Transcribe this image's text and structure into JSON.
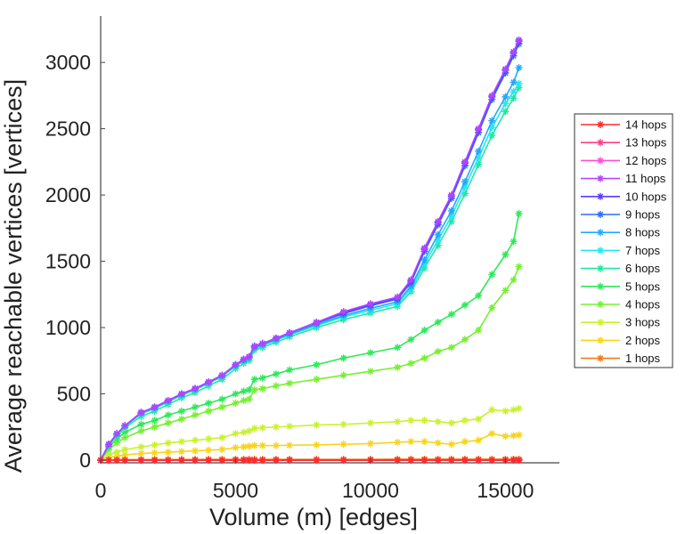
{
  "chart_data": {
    "type": "line",
    "title": "",
    "xlabel": "Volume (m) [edges]",
    "ylabel": "Average reachable vertices [vertices]",
    "xlim": [
      0,
      17000
    ],
    "ylim": [
      -20,
      3350
    ],
    "xticks": [
      0,
      5000,
      10000,
      15000
    ],
    "xtick_labels": [
      "0",
      "5000",
      "10000",
      "15000"
    ],
    "yticks": [
      0,
      500,
      1000,
      1500,
      2000,
      2500,
      3000
    ],
    "ytick_labels": [
      "0",
      "500",
      "1000",
      "1500",
      "2000",
      "2500",
      "3000"
    ],
    "grid": false,
    "legend": "right",
    "marker": "asterisk",
    "x": [
      0,
      300,
      600,
      900,
      1500,
      2000,
      2500,
      3000,
      3500,
      4000,
      4500,
      5000,
      5300,
      5500,
      5700,
      6000,
      6500,
      7000,
      8000,
      9000,
      10000,
      11000,
      11500,
      12000,
      12500,
      13000,
      13500,
      14000,
      14500,
      15000,
      15300,
      15500
    ],
    "series": [
      {
        "name": "14 hops",
        "color": "#ff2b2b",
        "values": [
          0,
          0,
          0,
          0,
          0,
          0,
          0,
          0,
          0,
          0,
          0,
          0,
          0,
          0,
          0,
          0,
          0,
          0,
          0,
          0,
          0,
          0,
          0,
          0,
          0,
          0,
          0,
          0,
          0,
          0,
          0,
          0
        ]
      },
      {
        "name": "13 hops",
        "color": "#ff3f8a",
        "values": [
          0,
          0,
          0,
          0,
          0,
          0,
          0,
          0,
          0,
          0,
          0,
          0,
          0,
          0,
          0,
          0,
          0,
          0,
          0,
          0,
          0,
          0,
          0,
          0,
          0,
          0,
          0,
          0,
          0,
          0,
          0,
          0
        ]
      },
      {
        "name": "12 hops",
        "color": "#ff4dd8",
        "values": [
          0,
          0,
          0,
          0,
          0,
          0,
          0,
          0,
          0,
          0,
          0,
          0,
          0,
          0,
          0,
          0,
          0,
          0,
          0,
          0,
          0,
          0,
          0,
          0,
          0,
          0,
          0,
          0,
          0,
          0,
          0,
          0
        ]
      },
      {
        "name": "11 hops",
        "color": "#b444ff",
        "values": [
          0,
          120,
          200,
          260,
          360,
          400,
          450,
          500,
          540,
          590,
          640,
          720,
          760,
          780,
          860,
          880,
          920,
          960,
          1040,
          1120,
          1180,
          1230,
          1360,
          1600,
          1800,
          2000,
          2250,
          2500,
          2750,
          2950,
          3080,
          3170
        ]
      },
      {
        "name": "10 hops",
        "color": "#5a3cff",
        "values": [
          0,
          120,
          200,
          260,
          360,
          400,
          450,
          500,
          540,
          590,
          640,
          720,
          760,
          780,
          860,
          880,
          920,
          960,
          1040,
          1110,
          1170,
          1220,
          1350,
          1590,
          1790,
          1990,
          2240,
          2490,
          2740,
          2940,
          3070,
          3160
        ]
      },
      {
        "name": "9 hops",
        "color": "#2f6bff",
        "values": [
          0,
          120,
          200,
          260,
          360,
          400,
          450,
          500,
          540,
          590,
          640,
          720,
          760,
          780,
          860,
          880,
          920,
          960,
          1035,
          1105,
          1165,
          1215,
          1340,
          1575,
          1775,
          1975,
          2220,
          2470,
          2720,
          2920,
          3050,
          3140
        ]
      },
      {
        "name": "8 hops",
        "color": "#22a8ff",
        "values": [
          0,
          118,
          198,
          258,
          355,
          395,
          445,
          495,
          535,
          585,
          635,
          715,
          755,
          775,
          850,
          870,
          910,
          950,
          1025,
          1090,
          1145,
          1195,
          1310,
          1510,
          1700,
          1880,
          2100,
          2330,
          2560,
          2740,
          2850,
          2960
        ]
      },
      {
        "name": "7 hops",
        "color": "#22e8f0",
        "values": [
          0,
          115,
          195,
          255,
          350,
          390,
          440,
          490,
          530,
          580,
          630,
          710,
          750,
          770,
          845,
          865,
          905,
          945,
          1015,
          1080,
          1130,
          1180,
          1290,
          1480,
          1660,
          1840,
          2060,
          2280,
          2510,
          2690,
          2780,
          2840
        ]
      },
      {
        "name": "6 hops",
        "color": "#20e8a0",
        "values": [
          0,
          110,
          185,
          245,
          330,
          370,
          420,
          470,
          510,
          560,
          610,
          690,
          730,
          750,
          830,
          850,
          890,
          930,
          1000,
          1060,
          1110,
          1160,
          1270,
          1450,
          1620,
          1800,
          2010,
          2230,
          2450,
          2630,
          2730,
          2810
        ]
      },
      {
        "name": "5 hops",
        "color": "#2ee85a",
        "values": [
          0,
          100,
          160,
          210,
          270,
          300,
          340,
          370,
          400,
          430,
          460,
          500,
          520,
          530,
          610,
          620,
          650,
          680,
          720,
          770,
          810,
          850,
          910,
          980,
          1040,
          1100,
          1170,
          1240,
          1400,
          1550,
          1650,
          1860
        ]
      },
      {
        "name": "4 hops",
        "color": "#76f030",
        "values": [
          0,
          80,
          130,
          170,
          220,
          250,
          280,
          310,
          340,
          370,
          400,
          430,
          450,
          460,
          530,
          540,
          560,
          580,
          610,
          640,
          670,
          700,
          730,
          770,
          820,
          850,
          910,
          980,
          1150,
          1280,
          1360,
          1460
        ]
      },
      {
        "name": "3 hops",
        "color": "#c8f22e",
        "values": [
          0,
          40,
          60,
          80,
          100,
          115,
          130,
          140,
          150,
          160,
          170,
          200,
          210,
          220,
          240,
          245,
          250,
          255,
          265,
          270,
          280,
          290,
          300,
          300,
          290,
          280,
          300,
          310,
          380,
          370,
          380,
          390
        ]
      },
      {
        "name": "2 hops",
        "color": "#f8d41a",
        "values": [
          0,
          20,
          30,
          40,
          50,
          55,
          60,
          65,
          70,
          75,
          80,
          95,
          100,
          105,
          110,
          110,
          110,
          112,
          115,
          120,
          125,
          135,
          140,
          140,
          130,
          120,
          140,
          150,
          200,
          180,
          185,
          190
        ]
      },
      {
        "name": "1 hops",
        "color": "#f07a1a",
        "values": [
          0,
          2,
          3,
          4,
          4,
          5,
          5,
          5,
          5,
          6,
          6,
          6,
          6,
          6,
          6,
          6,
          6,
          6,
          6,
          6,
          6,
          7,
          7,
          7,
          7,
          7,
          7,
          7,
          7,
          7,
          7,
          7
        ]
      }
    ]
  }
}
